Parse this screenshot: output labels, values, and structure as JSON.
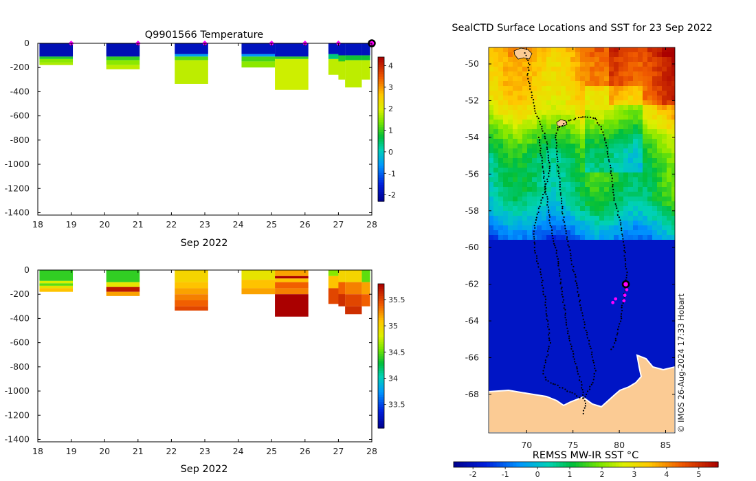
{
  "chart_data": [
    {
      "type": "heatmap",
      "title": "Q9901566  Temperature",
      "xlabel": "Sep 2022",
      "ylabel": "",
      "xlim": [
        18,
        28
      ],
      "ylim": [
        -1420,
        0
      ],
      "x_ticks": [
        18,
        19,
        20,
        21,
        22,
        23,
        24,
        25,
        26,
        27,
        28
      ],
      "y_ticks": [
        0,
        -200,
        -400,
        -600,
        -800,
        -1000,
        -1200,
        -1400
      ],
      "colorbar": {
        "range": [
          -2.3,
          4.4
        ],
        "ticks": [
          -2,
          -1,
          0,
          1,
          2,
          3,
          4
        ]
      },
      "surface_markers": [
        19,
        21,
        23,
        25,
        26,
        27
      ],
      "last_marker": 28,
      "profiles": [
        {
          "x0": 18.05,
          "x1": 19.05,
          "bands": [
            [
              0,
              -110,
              -1.9
            ],
            [
              -110,
              -130,
              0.9
            ],
            [
              -130,
              -160,
              1.5
            ],
            [
              -160,
              -180,
              1.7
            ]
          ]
        },
        {
          "x0": 20.05,
          "x1": 21.05,
          "bands": [
            [
              0,
              -110,
              -1.9
            ],
            [
              -110,
              -140,
              1.0
            ],
            [
              -140,
              -180,
              1.5
            ],
            [
              -180,
              -215,
              1.8
            ]
          ]
        },
        {
          "x0": 22.1,
          "x1": 23.1,
          "bands": [
            [
              0,
              -90,
              -1.8
            ],
            [
              -90,
              -110,
              -0.5
            ],
            [
              -110,
              -140,
              1.2
            ],
            [
              -140,
              -335,
              1.8
            ]
          ]
        },
        {
          "x0": 24.1,
          "x1": 25.1,
          "bands": [
            [
              0,
              -90,
              -1.8
            ],
            [
              -90,
              -110,
              -0.6
            ],
            [
              -110,
              -150,
              1.1
            ],
            [
              -150,
              -200,
              1.5
            ]
          ]
        },
        {
          "x0": 25.1,
          "x1": 26.1,
          "bands": [
            [
              0,
              -110,
              -1.8
            ],
            [
              -110,
              -130,
              1.0
            ],
            [
              -130,
              -385,
              1.9
            ]
          ]
        },
        {
          "x0": 26.7,
          "x1": 27.2,
          "bands": [
            [
              0,
              -90,
              -1.8
            ],
            [
              -90,
              -130,
              0.4
            ],
            [
              -130,
              -260,
              1.8
            ]
          ]
        },
        {
          "x0": 27.0,
          "x1": 27.2,
          "bands": [
            [
              0,
              -100,
              -1.8
            ],
            [
              -100,
              -150,
              0.9
            ],
            [
              -150,
              -300,
              1.8
            ]
          ]
        },
        {
          "x0": 27.2,
          "x1": 27.7,
          "bands": [
            [
              0,
              -100,
              -1.8
            ],
            [
              -100,
              -140,
              0.8
            ],
            [
              -140,
              -365,
              1.8
            ]
          ]
        },
        {
          "x0": 27.7,
          "x1": 27.95,
          "bands": [
            [
              0,
              -100,
              -1.8
            ],
            [
              -100,
              -140,
              0.8
            ],
            [
              -140,
              -300,
              1.8
            ]
          ]
        }
      ]
    },
    {
      "type": "heatmap",
      "title": "",
      "xlabel": "Sep 2022",
      "ylabel": "",
      "xlim": [
        18,
        28
      ],
      "ylim": [
        -1420,
        0
      ],
      "x_ticks": [
        18,
        19,
        20,
        21,
        22,
        23,
        24,
        25,
        26,
        27,
        28
      ],
      "y_ticks": [
        0,
        -200,
        -400,
        -600,
        -800,
        -1000,
        -1200,
        -1400
      ],
      "colorbar": {
        "range": [
          33.05,
          35.8
        ],
        "ticks": [
          33.5,
          34,
          34.5,
          35,
          35.5
        ]
      },
      "profiles": [
        {
          "x0": 18.05,
          "x1": 19.05,
          "bands": [
            [
              0,
              -90,
              34.4
            ],
            [
              -90,
              -110,
              34.8
            ],
            [
              -110,
              -130,
              34.5
            ],
            [
              -130,
              -150,
              34.9
            ],
            [
              -150,
              -180,
              35.1
            ]
          ]
        },
        {
          "x0": 20.05,
          "x1": 21.05,
          "bands": [
            [
              0,
              -100,
              34.4
            ],
            [
              -100,
              -140,
              34.9
            ],
            [
              -140,
              -180,
              35.7
            ],
            [
              -180,
              -215,
              35.2
            ]
          ]
        },
        {
          "x0": 22.1,
          "x1": 23.1,
          "bands": [
            [
              0,
              -100,
              35.0
            ],
            [
              -100,
              -150,
              35.1
            ],
            [
              -150,
              -200,
              35.2
            ],
            [
              -200,
              -250,
              35.3
            ],
            [
              -250,
              -300,
              35.4
            ],
            [
              -300,
              -335,
              35.5
            ]
          ]
        },
        {
          "x0": 24.1,
          "x1": 25.1,
          "bands": [
            [
              0,
              -80,
              34.9
            ],
            [
              -80,
              -150,
              35.1
            ],
            [
              -150,
              -200,
              35.2
            ]
          ]
        },
        {
          "x0": 25.1,
          "x1": 26.1,
          "bands": [
            [
              0,
              -50,
              35.2
            ],
            [
              -50,
              -70,
              35.8
            ],
            [
              -70,
              -100,
              35.1
            ],
            [
              -100,
              -150,
              35.4
            ],
            [
              -150,
              -200,
              35.3
            ],
            [
              -200,
              -385,
              35.8
            ]
          ]
        },
        {
          "x0": 26.7,
          "x1": 27.2,
          "bands": [
            [
              0,
              -50,
              34.6
            ],
            [
              -50,
              -150,
              35.1
            ],
            [
              -150,
              -280,
              35.5
            ]
          ]
        },
        {
          "x0": 27.0,
          "x1": 27.2,
          "bands": [
            [
              0,
              -100,
              35.0
            ],
            [
              -100,
              -200,
              35.4
            ],
            [
              -200,
              -300,
              35.6
            ]
          ]
        },
        {
          "x0": 27.2,
          "x1": 27.7,
          "bands": [
            [
              0,
              -100,
              35.0
            ],
            [
              -100,
              -200,
              35.3
            ],
            [
              -200,
              -300,
              35.5
            ],
            [
              -300,
              -365,
              35.6
            ]
          ]
        },
        {
          "x0": 27.7,
          "x1": 27.95,
          "bands": [
            [
              0,
              -100,
              34.5
            ],
            [
              -100,
              -200,
              35.2
            ],
            [
              -200,
              -300,
              35.4
            ]
          ]
        }
      ]
    },
    {
      "type": "heatmap",
      "title": "SealCTD Surface Locations and SST for 23 Sep 2022",
      "xlabel": "",
      "ylabel": "",
      "xlim": [
        65.9,
        86
      ],
      "ylim": [
        -70.1,
        -49.1
      ],
      "x_ticks": [
        70,
        75,
        80,
        85
      ],
      "y_ticks": [
        -50,
        -52,
        -54,
        -56,
        -58,
        -60,
        -62,
        -64,
        -66,
        -68
      ],
      "colorbar": {
        "label": "REMSS MW-IR SST °C",
        "range": [
          -2.6,
          5.6
        ],
        "ticks": [
          -2,
          -1,
          0,
          1,
          2,
          3,
          4,
          5
        ]
      },
      "credit": "© IMOS 26-Aug-2024 17:33 Hobart",
      "current_position": [
        80.7,
        -62.0
      ],
      "recent_positions": [
        [
          79.3,
          -63.0
        ],
        [
          79.6,
          -62.8
        ],
        [
          80.5,
          -62.9
        ],
        [
          80.6,
          -62.6
        ],
        [
          80.8,
          -62.3
        ]
      ]
    }
  ]
}
